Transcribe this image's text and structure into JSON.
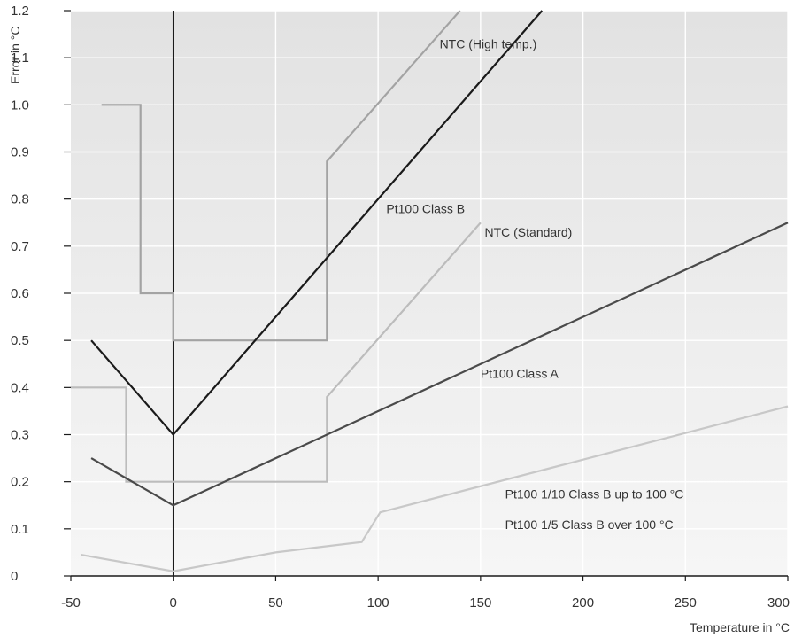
{
  "chart_data": {
    "type": "line",
    "title": "",
    "xlabel": "Temperature in °C",
    "ylabel": "Error in °C",
    "xlim": [
      -50,
      300
    ],
    "ylim": [
      0,
      1.2
    ],
    "x_ticks": [
      -50,
      0,
      50,
      100,
      150,
      200,
      250,
      300
    ],
    "y_ticks": [
      0,
      0.1,
      0.2,
      0.3,
      0.4,
      0.5,
      0.6,
      0.7,
      0.8,
      0.9,
      1.0,
      1.1,
      1.2
    ],
    "x_tick_labels": [
      "-50",
      "0",
      "50",
      "100",
      "150",
      "200",
      "250",
      "300"
    ],
    "y_tick_labels": [
      "0",
      "0.1",
      "0.2",
      "0.3",
      "0.4",
      "0.5",
      "0.6",
      "0.7",
      "0.8",
      "0.9",
      "1.0",
      "1.1",
      "1.2"
    ],
    "grid": true,
    "colors": {
      "background_top": "#e2e2e2",
      "background_bottom": "#f6f6f6",
      "grid": "#ffffff",
      "axis": "#1a1a1a",
      "ntc_high": "#a3a3a3",
      "pt100_b": "#1a1a1a",
      "ntc_standard": "#bcbcbc",
      "pt100_a": "#4a4a4a",
      "pt100_fraction": "#c8c8c8"
    },
    "series": [
      {
        "name": "NTC (High temp.)",
        "color_key": "ntc_high",
        "width": 2.2,
        "points": [
          [
            -35,
            1.0
          ],
          [
            -16,
            1.0
          ],
          [
            -16,
            0.6
          ],
          [
            0,
            0.6
          ],
          [
            0,
            0.5
          ],
          [
            75,
            0.5
          ],
          [
            75,
            0.88
          ],
          [
            140,
            1.2
          ]
        ]
      },
      {
        "name": "Pt100 Class B",
        "color_key": "pt100_b",
        "width": 2.2,
        "points": [
          [
            -40,
            0.5
          ],
          [
            0,
            0.3
          ],
          [
            180,
            1.2
          ]
        ]
      },
      {
        "name": "NTC (Standard)",
        "color_key": "ntc_standard",
        "width": 2.2,
        "points": [
          [
            -50,
            0.4
          ],
          [
            -23,
            0.4
          ],
          [
            -23,
            0.2
          ],
          [
            75,
            0.2
          ],
          [
            75,
            0.38
          ],
          [
            150,
            0.75
          ]
        ]
      },
      {
        "name": "Pt100 Class A",
        "color_key": "pt100_a",
        "width": 2.2,
        "points": [
          [
            -40,
            0.25
          ],
          [
            0,
            0.15
          ],
          [
            300,
            0.75
          ]
        ]
      },
      {
        "name": "Pt100 1/10 Class B up to 100 °C / Pt100 1/5 Class B over 100 °C",
        "color_key": "pt100_fraction",
        "width": 2.2,
        "points": [
          [
            -45,
            0.045
          ],
          [
            0,
            0.01
          ],
          [
            50,
            0.05
          ],
          [
            92,
            0.072
          ],
          [
            101,
            0.135
          ],
          [
            300,
            0.36
          ]
        ]
      }
    ],
    "annotations": [
      {
        "text": "NTC (High temp.)",
        "x": 130,
        "y": 1.12
      },
      {
        "text": "Pt100 Class B",
        "x": 104,
        "y": 0.77
      },
      {
        "text": "NTC (Standard)",
        "x": 152,
        "y": 0.72
      },
      {
        "text": "Pt100 Class A",
        "x": 150,
        "y": 0.42
      },
      {
        "text": "Pt100 1/10 Class B up to 100 °C",
        "x": 162,
        "y": 0.165
      },
      {
        "text": "Pt100 1/5 Class B over 100 °C",
        "x": 162,
        "y": 0.1
      }
    ]
  }
}
